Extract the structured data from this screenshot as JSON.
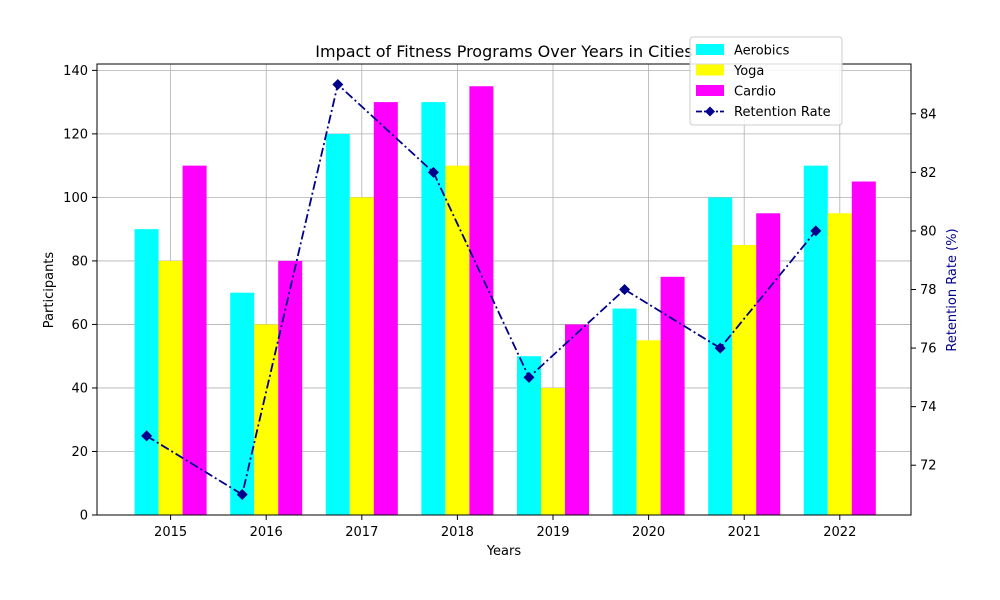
{
  "chart_data": {
    "type": "bar",
    "title": "Impact of Fitness Programs Over Years in Cities",
    "xlabel": "Years",
    "ylabel": "Participants",
    "y2label": "Retention Rate (%)",
    "categories": [
      "2015",
      "2016",
      "2017",
      "2018",
      "2019",
      "2020",
      "2021",
      "2022"
    ],
    "ylim": [
      0,
      142
    ],
    "yticks": [
      0,
      20,
      40,
      60,
      80,
      100,
      120,
      140
    ],
    "y2lim": [
      70.3,
      85.7
    ],
    "y2ticks": [
      72,
      74,
      76,
      78,
      80,
      82,
      84
    ],
    "grid": true,
    "legend_position": "top-right",
    "series": [
      {
        "name": "Aerobics",
        "kind": "bar",
        "color": "#00ffff",
        "values": [
          90,
          70,
          120,
          130,
          50,
          65,
          100,
          110
        ]
      },
      {
        "name": "Yoga",
        "kind": "bar",
        "color": "#ffff00",
        "values": [
          80,
          60,
          100,
          110,
          40,
          55,
          85,
          95
        ]
      },
      {
        "name": "Cardio",
        "kind": "bar",
        "color": "#ff00ff",
        "values": [
          110,
          80,
          130,
          135,
          60,
          75,
          95,
          105
        ]
      },
      {
        "name": "Retention Rate",
        "kind": "line",
        "axis": "right",
        "color": "#00008b",
        "linestyle": "dash-dot",
        "marker": "diamond",
        "values": [
          73,
          71,
          85,
          82,
          75,
          78,
          76,
          80
        ]
      }
    ]
  }
}
